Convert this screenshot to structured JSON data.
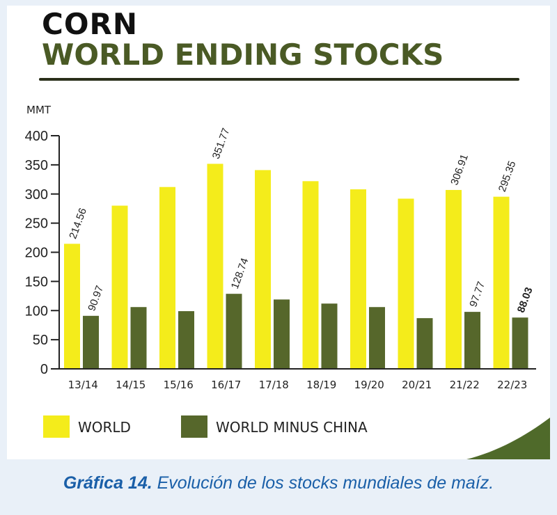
{
  "title": {
    "line1": "CORN",
    "line2": "WORLD ENDING STOCKS"
  },
  "caption": {
    "label": "Gráfica 14.",
    "text": " Evolución de los stocks mundiales de maíz."
  },
  "colors": {
    "world": "#f4ec1b",
    "world_minus_china": "#56672b",
    "title_green": "#4a5a25",
    "caption_blue": "#1a5fa8"
  },
  "chart_data": {
    "type": "bar",
    "ylabel": "MMT",
    "ylim": [
      0,
      400
    ],
    "yticks": [
      0,
      50,
      100,
      150,
      200,
      250,
      300,
      350,
      400
    ],
    "categories": [
      "13/14",
      "14/15",
      "15/16",
      "16/17",
      "17/18",
      "18/19",
      "19/20",
      "20/21",
      "21/22",
      "22/23"
    ],
    "series": [
      {
        "name": "WORLD",
        "color": "#f4ec1b",
        "values": [
          214.56,
          280,
          312,
          351.77,
          341,
          322,
          308,
          292,
          306.91,
          295.35
        ],
        "labels": [
          "214.56",
          "",
          "",
          "351.77",
          "",
          "",
          "",
          "",
          "306.91",
          "295.35"
        ]
      },
      {
        "name": "WORLD MINUS CHINA",
        "color": "#56672b",
        "values": [
          90.97,
          106,
          99,
          128.74,
          119,
          112,
          106,
          87,
          97.77,
          88.03
        ],
        "labels": [
          "90.97",
          "",
          "",
          "128.74",
          "",
          "",
          "",
          "",
          "97.77",
          "88.03"
        ]
      }
    ],
    "legend_position": "bottom"
  }
}
